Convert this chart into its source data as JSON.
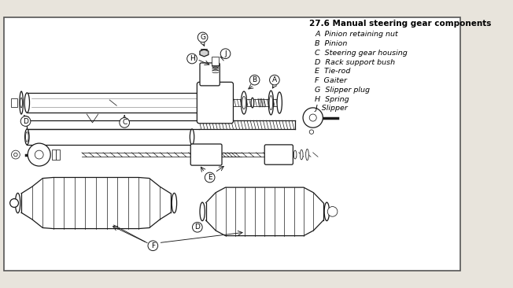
{
  "title": "27.6 Manual steering gear components",
  "legend_items": [
    [
      "A",
      "Pinion retaining nut"
    ],
    [
      "B",
      "Pinion"
    ],
    [
      "C",
      "Steering gear housing"
    ],
    [
      "D",
      "Rack support bush"
    ],
    [
      "E",
      "Tie-rod"
    ],
    [
      "F",
      "Gaiter"
    ],
    [
      "G",
      "Slipper plug"
    ],
    [
      "H",
      "Spring"
    ],
    [
      "J",
      "Slipper"
    ]
  ],
  "bg_color": "#e8e4dc",
  "border_color": "#000000",
  "line_color": "#1a1a1a",
  "text_color": "#000000",
  "title_fontsize": 7.5,
  "legend_fontsize": 6.8,
  "fig_width": 6.52,
  "fig_height": 3.66,
  "dpi": 100
}
